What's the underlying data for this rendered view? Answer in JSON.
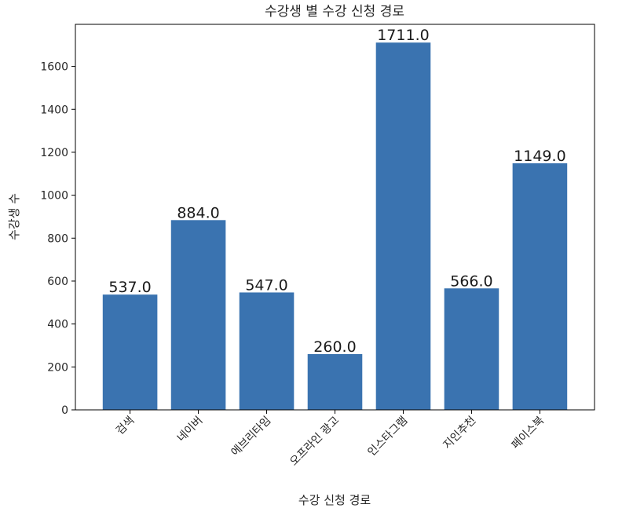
{
  "chart_data": {
    "type": "bar",
    "title": "수강생 별 수강 신청 경로",
    "xlabel": "수강 신청 경로",
    "ylabel": "수강생 수",
    "categories": [
      "검색",
      "네이버",
      "에브리타임",
      "오프라인 광고",
      "인스타그램",
      "지인추천",
      "페이스북"
    ],
    "values": [
      537.0,
      884.0,
      547.0,
      260.0,
      1711.0,
      566.0,
      1149.0
    ],
    "value_labels": [
      "537.0",
      "884.0",
      "547.0",
      "260.0",
      "1711.0",
      "566.0",
      "1149.0"
    ],
    "ylim": [
      0,
      1796
    ],
    "yticks": [
      0,
      200,
      400,
      600,
      800,
      1000,
      1200,
      1400,
      1600
    ],
    "ytick_labels": [
      "0",
      "200",
      "400",
      "600",
      "800",
      "1000",
      "1200",
      "1400",
      "1600"
    ],
    "grid": false,
    "bar_color": "#3a73b0"
  }
}
